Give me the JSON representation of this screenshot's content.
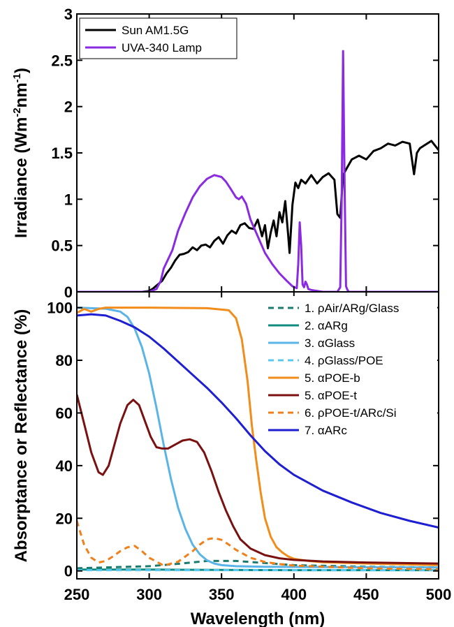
{
  "chart_data": [
    {
      "type": "line",
      "ylabel": "Irradiance (Wm-2nm-1)",
      "ylabel_parts": [
        "Irradiance (Wm",
        "-2",
        "nm",
        "-1",
        ")"
      ],
      "xlim": [
        250,
        500
      ],
      "ylim": [
        0,
        3
      ],
      "yticks": [
        "0",
        "0.5",
        "1",
        "1.5",
        "2",
        "2.5",
        "3"
      ],
      "legend": "top-left",
      "grid": false,
      "series": [
        {
          "name": "Sun AM1.5G",
          "color": "#000000",
          "style": "solid",
          "x": [
            250,
            280,
            290,
            295,
            298,
            300,
            303,
            306,
            309,
            312,
            315,
            318,
            321,
            324,
            327,
            330,
            333,
            336,
            339,
            342,
            345,
            348,
            351,
            354,
            357,
            360,
            363,
            366,
            369,
            372,
            375,
            378,
            380,
            382,
            384,
            386,
            388,
            390,
            392,
            394,
            396,
            397,
            399,
            401,
            403,
            405,
            408,
            412,
            416,
            420,
            424,
            428,
            430,
            432,
            434,
            436,
            440,
            445,
            450,
            455,
            460,
            465,
            470,
            475,
            480,
            483,
            485,
            487,
            490,
            495,
            500
          ],
          "y": [
            0,
            0,
            0,
            0,
            0.005,
            0.01,
            0.04,
            0.08,
            0.12,
            0.2,
            0.26,
            0.34,
            0.4,
            0.41,
            0.43,
            0.48,
            0.45,
            0.5,
            0.51,
            0.48,
            0.55,
            0.59,
            0.52,
            0.61,
            0.66,
            0.63,
            0.72,
            0.74,
            0.69,
            0.68,
            0.78,
            0.6,
            0.72,
            0.47,
            0.64,
            0.77,
            0.6,
            0.86,
            0.75,
            0.98,
            0.62,
            0.42,
            0.94,
            1.18,
            1.12,
            1.21,
            1.17,
            1.26,
            1.17,
            1.24,
            1.28,
            1.21,
            0.84,
            0.8,
            1.26,
            1.32,
            1.43,
            1.47,
            1.43,
            1.52,
            1.55,
            1.6,
            1.58,
            1.62,
            1.6,
            1.27,
            1.5,
            1.55,
            1.58,
            1.63,
            1.53
          ]
        },
        {
          "name": "UVA-340 Lamp",
          "color": "#8a2be2",
          "style": "solid",
          "x": [
            250,
            290,
            295,
            300,
            305,
            308,
            310,
            313,
            316,
            320,
            325,
            330,
            335,
            340,
            345,
            350,
            353,
            356,
            360,
            362,
            364,
            367,
            370,
            375,
            380,
            385,
            390,
            395,
            399,
            402,
            403,
            404,
            405,
            406,
            407,
            408,
            409,
            410,
            412,
            420,
            430,
            432,
            433,
            434,
            435,
            436,
            437,
            438,
            440,
            500
          ],
          "y": [
            0,
            0,
            0,
            0,
            0.03,
            0.12,
            0.25,
            0.35,
            0.45,
            0.66,
            0.85,
            1.02,
            1.14,
            1.22,
            1.26,
            1.24,
            1.19,
            1.12,
            1.02,
            1.0,
            1.03,
            0.95,
            0.78,
            0.6,
            0.42,
            0.3,
            0.2,
            0.12,
            0.06,
            0.04,
            0.3,
            0.75,
            0.5,
            0.08,
            0.05,
            0.11,
            0.08,
            0.03,
            0.02,
            0.0,
            0.0,
            0.05,
            1.0,
            2.6,
            1.2,
            0.06,
            0.02,
            0.0,
            0.0,
            0.0
          ]
        }
      ]
    },
    {
      "type": "line",
      "xlabel": "Wavelength (nm)",
      "ylabel": "Absorptance or Reflectance (%)",
      "xlim": [
        250,
        500
      ],
      "ylim": [
        -3,
        106
      ],
      "xticks": [
        "250",
        "300",
        "350",
        "400",
        "450",
        "500"
      ],
      "yticks": [
        "0",
        "20",
        "40",
        "60",
        "80",
        "100"
      ],
      "legend": "top-right",
      "grid": false,
      "series": [
        {
          "name": "1. ρAir/ARg/Glass",
          "color": "#1a7a6e",
          "style": "dashed",
          "x": [
            250,
            300,
            320,
            340,
            360,
            380,
            400,
            450,
            500
          ],
          "y": [
            1,
            1.8,
            2.7,
            3.8,
            3.8,
            3.0,
            2.2,
            1.6,
            1.3
          ]
        },
        {
          "name": "2. αARg",
          "color": "#0f8b80",
          "style": "solid",
          "x": [
            250,
            300,
            400,
            500
          ],
          "y": [
            0.5,
            0.5,
            0.3,
            0.3
          ]
        },
        {
          "name": "3. αGlass",
          "color": "#5ab4e8",
          "style": "solid",
          "x": [
            250,
            270,
            280,
            285,
            290,
            295,
            300,
            305,
            310,
            315,
            320,
            325,
            330,
            335,
            340,
            345,
            350,
            360,
            380,
            400,
            500
          ],
          "y": [
            100,
            99.6,
            98.5,
            96.5,
            92,
            85,
            75,
            62,
            48,
            35,
            24,
            16,
            10,
            6.3,
            4,
            2.8,
            2.2,
            1.8,
            1.6,
            1.5,
            1.3
          ]
        },
        {
          "name": "4. ρGlass/POE",
          "color": "#5ac8f0",
          "style": "dashed",
          "x": [
            250,
            300,
            350,
            400,
            500
          ],
          "y": [
            0.3,
            0.3,
            0.3,
            0.3,
            0.3
          ]
        },
        {
          "name": "5. αPOE-b",
          "color": "#f28c1a",
          "style": "solid",
          "x": [
            250,
            255,
            260,
            265,
            270,
            300,
            340,
            355,
            360,
            364,
            368,
            371,
            374,
            377,
            380,
            384,
            388,
            392,
            396,
            400,
            410,
            420,
            450,
            500
          ],
          "y": [
            98,
            99.5,
            98.5,
            99.5,
            100,
            100,
            99.8,
            99,
            96,
            88,
            72,
            55,
            42,
            30,
            20,
            13,
            9,
            7,
            5.5,
            4.6,
            3.8,
            3.3,
            2.8,
            2.2
          ]
        },
        {
          "name": "5. αPOE-t",
          "color": "#7a1010",
          "style": "solid",
          "x": [
            250,
            255,
            260,
            265,
            268,
            272,
            276,
            280,
            285,
            289,
            293,
            297,
            301,
            305,
            309,
            313,
            318,
            323,
            328,
            333,
            338,
            343,
            348,
            353,
            358,
            363,
            370,
            380,
            390,
            400,
            420,
            450,
            500
          ],
          "y": [
            67,
            56,
            45,
            37.5,
            36.5,
            40,
            48,
            56,
            63,
            65,
            63,
            57,
            51,
            47,
            46.5,
            46.5,
            48,
            49.5,
            50,
            49,
            45,
            38,
            30,
            23,
            17,
            12,
            8.5,
            6,
            4.8,
            4.2,
            3.6,
            3.2,
            2.8
          ]
        },
        {
          "name": "6. ρPOE-t/ARc/Si",
          "color": "#f0801a",
          "style": "dashed",
          "x": [
            250,
            255,
            260,
            265,
            270,
            275,
            280,
            285,
            290,
            295,
            300,
            310,
            320,
            330,
            335,
            340,
            345,
            350,
            355,
            360,
            365,
            370,
            380,
            390,
            400,
            450,
            500
          ],
          "y": [
            19,
            10,
            5,
            3.2,
            3.8,
            5.5,
            7.5,
            9,
            9.5,
            7.5,
            5,
            2,
            3.5,
            7.5,
            10,
            12,
            12.5,
            11.8,
            10,
            8,
            6.5,
            5,
            3.4,
            2.6,
            2,
            1,
            0.6
          ]
        },
        {
          "name": "7. αARc",
          "color": "#1e1ed2",
          "style": "solid",
          "x": [
            250,
            260,
            270,
            280,
            290,
            300,
            310,
            320,
            330,
            340,
            350,
            360,
            370,
            380,
            390,
            400,
            420,
            440,
            460,
            480,
            500
          ],
          "y": [
            97,
            97.5,
            97,
            95,
            92.5,
            89,
            84.5,
            79.5,
            74.5,
            69.5,
            64,
            58,
            51.5,
            45.5,
            40.5,
            36.5,
            30.5,
            26,
            22,
            19,
            16.5
          ]
        }
      ]
    }
  ]
}
